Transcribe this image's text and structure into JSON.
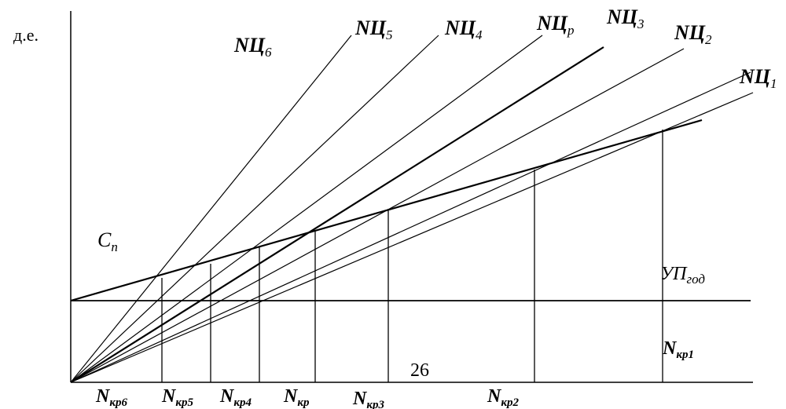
{
  "axis": {
    "y_unit": "д.е."
  },
  "cost_label": {
    "main": "C",
    "sub": "п"
  },
  "fixed_cost_label": {
    "main": "УП",
    "sub": "год"
  },
  "page_number": "26",
  "revenue_lines": [
    {
      "id": "6",
      "main": "NЦ",
      "sub": "6"
    },
    {
      "id": "5",
      "main": "NЦ",
      "sub": "5"
    },
    {
      "id": "4",
      "main": "NЦ",
      "sub": "4"
    },
    {
      "id": "p",
      "main": "NЦ",
      "sub": "р"
    },
    {
      "id": "3",
      "main": "NЦ",
      "sub": "3"
    },
    {
      "id": "2",
      "main": "NЦ",
      "sub": "2"
    },
    {
      "id": "1",
      "main": "NЦ",
      "sub": "1"
    }
  ],
  "breakeven_points": [
    {
      "id": "6",
      "main": "N",
      "sub": "кр6"
    },
    {
      "id": "5",
      "main": "N",
      "sub": "кр5"
    },
    {
      "id": "4",
      "main": "N",
      "sub": "кр4"
    },
    {
      "id": "p",
      "main": "N",
      "sub": "кр"
    },
    {
      "id": "3",
      "main": "N",
      "sub": "кр3"
    },
    {
      "id": "2",
      "main": "N",
      "sub": "кр2"
    },
    {
      "id": "1",
      "main": "N",
      "sub": "кр1"
    }
  ]
}
